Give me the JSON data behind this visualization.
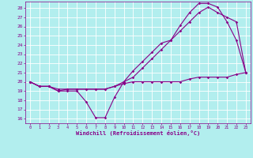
{
  "xlabel": "Windchill (Refroidissement éolien,°C)",
  "xlim": [
    -0.5,
    23.5
  ],
  "ylim": [
    15.5,
    28.7
  ],
  "xticks": [
    0,
    1,
    2,
    3,
    4,
    5,
    6,
    7,
    8,
    9,
    10,
    11,
    12,
    13,
    14,
    15,
    16,
    17,
    18,
    19,
    20,
    21,
    22,
    23
  ],
  "yticks": [
    16,
    17,
    18,
    19,
    20,
    21,
    22,
    23,
    24,
    25,
    26,
    27,
    28
  ],
  "bg_color": "#b2eeee",
  "line_color": "#880088",
  "grid_color": "#ffffff",
  "line1_x": [
    0,
    1,
    2,
    3,
    4,
    5,
    6,
    7,
    8,
    9,
    10,
    11,
    12,
    13,
    14,
    15,
    16,
    17,
    18,
    19,
    20,
    21,
    22,
    23
  ],
  "line1_y": [
    20.0,
    19.5,
    19.5,
    19.0,
    19.0,
    19.0,
    17.8,
    16.1,
    16.1,
    18.3,
    20.0,
    21.2,
    22.2,
    23.2,
    24.2,
    24.5,
    26.1,
    27.5,
    28.5,
    28.5,
    28.1,
    26.5,
    24.5,
    21.0
  ],
  "line2_x": [
    0,
    1,
    2,
    3,
    4,
    5,
    6,
    7,
    8,
    9,
    10,
    11,
    12,
    13,
    14,
    15,
    16,
    17,
    18,
    19,
    20,
    21,
    22,
    23
  ],
  "line2_y": [
    20.0,
    19.5,
    19.5,
    19.2,
    19.2,
    19.2,
    19.2,
    19.2,
    19.2,
    19.5,
    20.0,
    20.5,
    21.5,
    22.5,
    23.5,
    24.5,
    25.5,
    26.5,
    27.5,
    28.1,
    27.5,
    27.0,
    26.5,
    21.0
  ],
  "line3_x": [
    0,
    1,
    2,
    3,
    4,
    5,
    6,
    7,
    8,
    9,
    10,
    11,
    12,
    13,
    14,
    15,
    16,
    17,
    18,
    19,
    20,
    21,
    22,
    23
  ],
  "line3_y": [
    20.0,
    19.5,
    19.5,
    19.0,
    19.2,
    19.2,
    19.2,
    19.2,
    19.2,
    19.5,
    19.8,
    20.0,
    20.0,
    20.0,
    20.0,
    20.0,
    20.0,
    20.3,
    20.5,
    20.5,
    20.5,
    20.5,
    20.8,
    21.0
  ]
}
